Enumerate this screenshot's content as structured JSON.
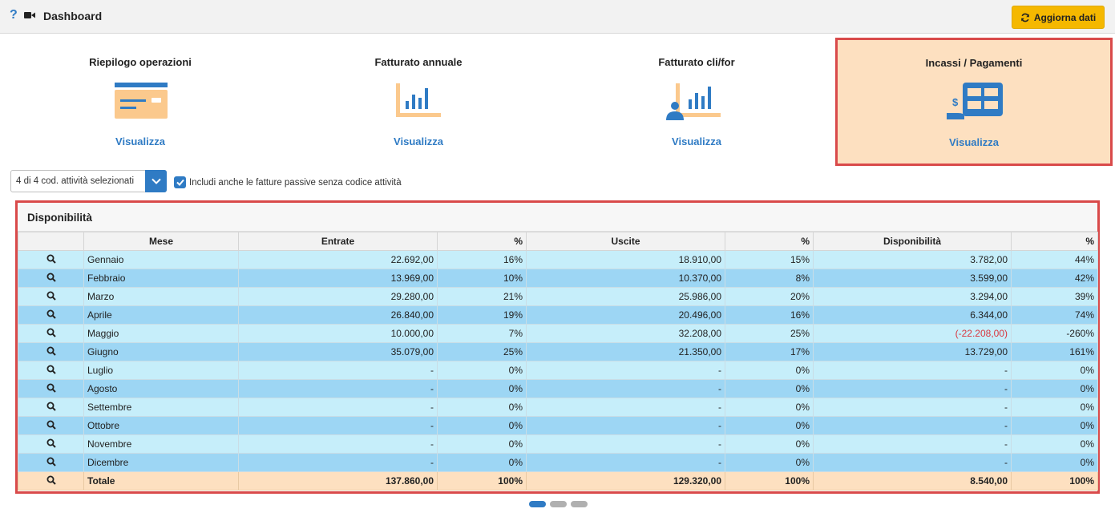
{
  "header": {
    "help_icon": "question-icon",
    "video_icon": "video-camera-icon",
    "title": "Dashboard",
    "refresh_label": "Aggiorna dati",
    "refresh_icon": "refresh-icon"
  },
  "tiles": [
    {
      "title": "Riepilogo operazioni",
      "link": "Visualizza",
      "icon": "card-summary-icon",
      "active": false
    },
    {
      "title": "Fatturato annuale",
      "link": "Visualizza",
      "icon": "bar-chart-icon",
      "active": false
    },
    {
      "title": "Fatturato cli/for",
      "link": "Visualizza",
      "icon": "customer-chart-icon",
      "active": false
    },
    {
      "title": "Incassi / Pagamenti",
      "link": "Visualizza",
      "icon": "payment-table-icon",
      "active": true
    }
  ],
  "filters": {
    "activity_select": "4 di 4 cod. attività selezionati",
    "include_checkbox_label": "Includi anche le fatture passive senza codice attività",
    "include_checked": true
  },
  "panel": {
    "title": "Disponibilità",
    "columns": [
      "",
      "Mese",
      "Entrate",
      "%",
      "Uscite",
      "%",
      "Disponibilità",
      "%"
    ],
    "rows": [
      {
        "mese": "Gennaio",
        "entrate": "22.692,00",
        "entrate_pct": "16%",
        "uscite": "18.910,00",
        "uscite_pct": "15%",
        "disp": "3.782,00",
        "disp_pct": "44%"
      },
      {
        "mese": "Febbraio",
        "entrate": "13.969,00",
        "entrate_pct": "10%",
        "uscite": "10.370,00",
        "uscite_pct": "8%",
        "disp": "3.599,00",
        "disp_pct": "42%"
      },
      {
        "mese": "Marzo",
        "entrate": "29.280,00",
        "entrate_pct": "21%",
        "uscite": "25.986,00",
        "uscite_pct": "20%",
        "disp": "3.294,00",
        "disp_pct": "39%"
      },
      {
        "mese": "Aprile",
        "entrate": "26.840,00",
        "entrate_pct": "19%",
        "uscite": "20.496,00",
        "uscite_pct": "16%",
        "disp": "6.344,00",
        "disp_pct": "74%"
      },
      {
        "mese": "Maggio",
        "entrate": "10.000,00",
        "entrate_pct": "7%",
        "uscite": "32.208,00",
        "uscite_pct": "25%",
        "disp": "(-22.208,00)",
        "disp_pct": "-260%"
      },
      {
        "mese": "Giugno",
        "entrate": "35.079,00",
        "entrate_pct": "25%",
        "uscite": "21.350,00",
        "uscite_pct": "17%",
        "disp": "13.729,00",
        "disp_pct": "161%"
      },
      {
        "mese": "Luglio",
        "entrate": "-",
        "entrate_pct": "0%",
        "uscite": "-",
        "uscite_pct": "0%",
        "disp": "-",
        "disp_pct": "0%"
      },
      {
        "mese": "Agosto",
        "entrate": "-",
        "entrate_pct": "0%",
        "uscite": "-",
        "uscite_pct": "0%",
        "disp": "-",
        "disp_pct": "0%"
      },
      {
        "mese": "Settembre",
        "entrate": "-",
        "entrate_pct": "0%",
        "uscite": "-",
        "uscite_pct": "0%",
        "disp": "-",
        "disp_pct": "0%"
      },
      {
        "mese": "Ottobre",
        "entrate": "-",
        "entrate_pct": "0%",
        "uscite": "-",
        "uscite_pct": "0%",
        "disp": "-",
        "disp_pct": "0%"
      },
      {
        "mese": "Novembre",
        "entrate": "-",
        "entrate_pct": "0%",
        "uscite": "-",
        "uscite_pct": "0%",
        "disp": "-",
        "disp_pct": "0%"
      },
      {
        "mese": "Dicembre",
        "entrate": "-",
        "entrate_pct": "0%",
        "uscite": "-",
        "uscite_pct": "0%",
        "disp": "-",
        "disp_pct": "0%"
      }
    ],
    "total": {
      "mese": "Totale",
      "entrate": "137.860,00",
      "entrate_pct": "100%",
      "uscite": "129.320,00",
      "uscite_pct": "100%",
      "disp": "8.540,00",
      "disp_pct": "100%"
    }
  },
  "pagination": {
    "pages": 3,
    "active": 1
  },
  "colors": {
    "accent": "#2f7bc4",
    "warning_button": "#f5b800",
    "active_tile": "#fde0c0",
    "highlight_border": "#d94a4a",
    "negative": "#d9363e"
  }
}
